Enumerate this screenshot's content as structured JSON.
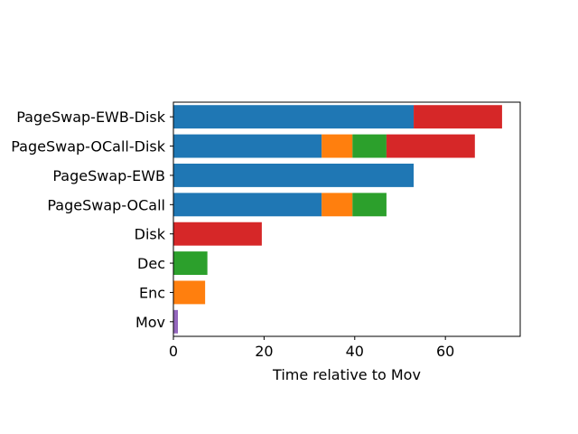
{
  "chart_data": {
    "type": "bar",
    "orientation": "horizontal",
    "stacked": true,
    "title": "",
    "xlabel": "Time relative to Mov",
    "ylabel": "",
    "xlim": [
      0,
      76.5
    ],
    "xticks": [
      0,
      20,
      40,
      60
    ],
    "grid": false,
    "categories": [
      "Mov",
      "Enc",
      "Dec",
      "Disk",
      "PageSwap-OCall",
      "PageSwap-EWB",
      "PageSwap-OCall-Disk",
      "PageSwap-EWB-Disk"
    ],
    "bars": [
      {
        "category": "Mov",
        "segments": [
          {
            "value": 1,
            "color": "#9467bd"
          }
        ]
      },
      {
        "category": "Enc",
        "segments": [
          {
            "value": 7,
            "color": "#ff7f0e"
          }
        ]
      },
      {
        "category": "Dec",
        "segments": [
          {
            "value": 7.5,
            "color": "#2ca02c"
          }
        ]
      },
      {
        "category": "Disk",
        "segments": [
          {
            "value": 19.5,
            "color": "#d62728"
          }
        ]
      },
      {
        "category": "PageSwap-OCall",
        "segments": [
          {
            "value": 32.7,
            "color": "#1f77b4"
          },
          {
            "value": 6.8,
            "color": "#ff7f0e"
          },
          {
            "value": 7.5,
            "color": "#2ca02c"
          }
        ]
      },
      {
        "category": "PageSwap-EWB",
        "segments": [
          {
            "value": 53,
            "color": "#1f77b4"
          }
        ]
      },
      {
        "category": "PageSwap-OCall-Disk",
        "segments": [
          {
            "value": 32.7,
            "color": "#1f77b4"
          },
          {
            "value": 6.8,
            "color": "#ff7f0e"
          },
          {
            "value": 7.5,
            "color": "#2ca02c"
          },
          {
            "value": 19.5,
            "color": "#d62728"
          }
        ]
      },
      {
        "category": "PageSwap-EWB-Disk",
        "segments": [
          {
            "value": 53,
            "color": "#1f77b4"
          },
          {
            "value": 19.5,
            "color": "#d62728"
          }
        ]
      }
    ]
  }
}
